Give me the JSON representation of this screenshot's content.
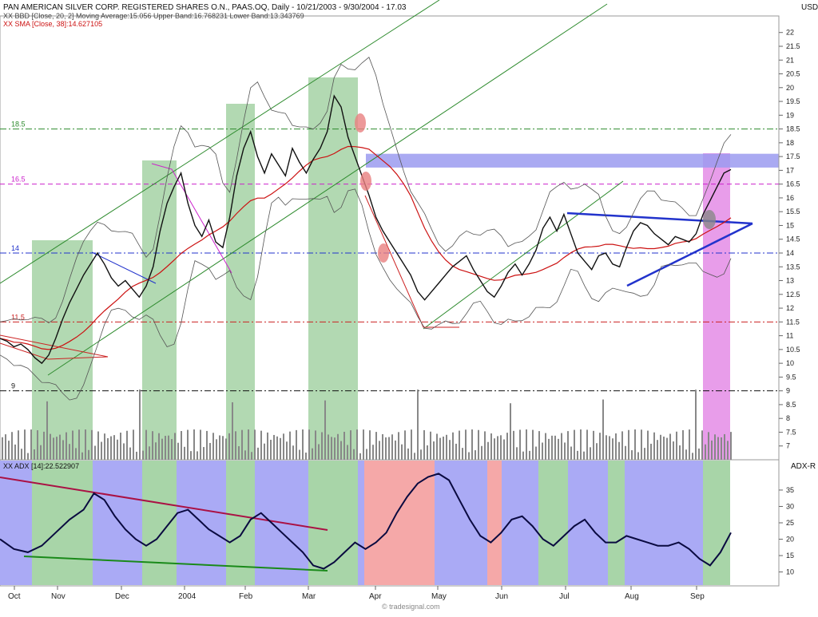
{
  "header": {
    "title_line": "PAN AMERICAN SILVER CORP. REGISTERED SHARES O.N., PAAS.OQ, Daily - 10/21/2003 - 9/30/2004 - 17.03",
    "bb_line": "XX BBD [Close, 20, 2] Moving Average:15.056 Upper Band:16.768231 Lower Band:13.343769",
    "sma_line": "XX SMA [Close, 38]:14.627105",
    "currency": "USD",
    "adx_line": "XX ADX [14]:22.522907",
    "adx_right_label": "ADX-R",
    "watermark": "© tradesignal.com"
  },
  "chart_data": {
    "type": "candlestick",
    "symbol": "PAAS.OQ",
    "period": "Daily - 10/21/2003 - 9/30/2004",
    "last_close": 17.03,
    "price_axis": {
      "ticks": [
        7,
        7.5,
        8,
        8.5,
        9,
        9.5,
        10,
        10.5,
        11,
        11.5,
        12,
        12.5,
        13,
        13.5,
        14,
        14.5,
        15,
        15.5,
        16,
        16.5,
        17,
        17.5,
        18,
        18.5,
        19,
        19.5,
        20,
        20.5,
        21,
        21.5,
        22
      ],
      "ylim": [
        6.5,
        22.6
      ],
      "unit": "USD"
    },
    "x_labels": [
      "Oct",
      "Nov",
      "Dec",
      "2004",
      "Feb",
      "Mar",
      "Apr",
      "May",
      "Jun",
      "Jul",
      "Aug",
      "Sep"
    ],
    "reference_levels": [
      {
        "label": "18.5",
        "value": 18.5,
        "color": "#2e8b2e",
        "style": "dashdot"
      },
      {
        "label": "16.5",
        "value": 16.5,
        "color": "#cc22cc",
        "style": "dash"
      },
      {
        "label": "14",
        "value": 14,
        "color": "#2233cc",
        "style": "dashdot"
      },
      {
        "label": "11.5",
        "value": 11.5,
        "color": "#cc2222",
        "style": "dashdot"
      },
      {
        "label": "9",
        "value": 9,
        "color": "#111111",
        "style": "dashdot"
      }
    ],
    "close_series": [
      [
        0,
        10.9
      ],
      [
        2,
        10.8
      ],
      [
        4,
        10.6
      ],
      [
        6,
        10.7
      ],
      [
        8,
        10.5
      ],
      [
        10,
        10.2
      ],
      [
        12,
        10.0
      ],
      [
        14,
        10.3
      ],
      [
        16,
        10.9
      ],
      [
        18,
        11.6
      ],
      [
        20,
        12.2
      ],
      [
        22,
        12.7
      ],
      [
        24,
        13.2
      ],
      [
        26,
        13.6
      ],
      [
        28,
        14.0
      ],
      [
        30,
        13.6
      ],
      [
        32,
        13.1
      ],
      [
        34,
        12.8
      ],
      [
        36,
        13.0
      ],
      [
        38,
        12.7
      ],
      [
        40,
        12.4
      ],
      [
        42,
        12.8
      ],
      [
        44,
        13.5
      ],
      [
        46,
        14.8
      ],
      [
        48,
        15.8
      ],
      [
        50,
        16.4
      ],
      [
        52,
        16.9
      ],
      [
        54,
        15.8
      ],
      [
        56,
        15.0
      ],
      [
        58,
        14.6
      ],
      [
        60,
        15.2
      ],
      [
        62,
        14.4
      ],
      [
        64,
        14.2
      ],
      [
        66,
        15.3
      ],
      [
        68,
        16.8
      ],
      [
        70,
        17.8
      ],
      [
        72,
        18.4
      ],
      [
        74,
        17.5
      ],
      [
        76,
        16.9
      ],
      [
        78,
        17.6
      ],
      [
        80,
        17.2
      ],
      [
        82,
        16.8
      ],
      [
        84,
        17.8
      ],
      [
        86,
        17.3
      ],
      [
        88,
        16.9
      ],
      [
        90,
        17.4
      ],
      [
        92,
        17.8
      ],
      [
        94,
        18.4
      ],
      [
        96,
        19.7
      ],
      [
        98,
        19.3
      ],
      [
        100,
        18.2
      ],
      [
        102,
        17.5
      ],
      [
        104,
        16.8
      ],
      [
        106,
        16.1
      ],
      [
        108,
        15.3
      ],
      [
        110,
        14.8
      ],
      [
        112,
        14.4
      ],
      [
        114,
        14.0
      ],
      [
        116,
        13.6
      ],
      [
        118,
        13.2
      ],
      [
        120,
        12.6
      ],
      [
        122,
        12.3
      ],
      [
        124,
        12.6
      ],
      [
        126,
        12.9
      ],
      [
        128,
        13.2
      ],
      [
        130,
        13.5
      ],
      [
        132,
        13.7
      ],
      [
        134,
        13.9
      ],
      [
        136,
        13.4
      ],
      [
        138,
        13.0
      ],
      [
        140,
        12.6
      ],
      [
        142,
        12.4
      ],
      [
        144,
        12.8
      ],
      [
        146,
        13.3
      ],
      [
        148,
        13.6
      ],
      [
        150,
        13.2
      ],
      [
        152,
        13.6
      ],
      [
        154,
        14.1
      ],
      [
        156,
        14.9
      ],
      [
        158,
        15.3
      ],
      [
        160,
        14.8
      ],
      [
        162,
        15.4
      ],
      [
        164,
        14.7
      ],
      [
        166,
        14.0
      ],
      [
        168,
        13.7
      ],
      [
        170,
        13.4
      ],
      [
        172,
        13.9
      ],
      [
        174,
        14.0
      ],
      [
        176,
        13.6
      ],
      [
        178,
        13.5
      ],
      [
        180,
        14.2
      ],
      [
        182,
        14.8
      ],
      [
        184,
        15.1
      ],
      [
        186,
        15.0
      ],
      [
        188,
        14.7
      ],
      [
        190,
        14.5
      ],
      [
        192,
        14.3
      ],
      [
        194,
        14.6
      ],
      [
        196,
        14.5
      ],
      [
        198,
        14.4
      ],
      [
        200,
        14.7
      ],
      [
        202,
        15.4
      ],
      [
        204,
        15.9
      ],
      [
        206,
        16.4
      ],
      [
        208,
        16.9
      ],
      [
        210,
        17.03
      ]
    ],
    "highlight_band": {
      "from": 17.1,
      "to": 17.6
    },
    "adx": {
      "label": "ADX [14]",
      "last": 22.522907,
      "ticks": [
        10,
        15,
        20,
        25,
        30,
        35
      ],
      "ylim": [
        6,
        44
      ],
      "series": [
        [
          0,
          20
        ],
        [
          4,
          17
        ],
        [
          8,
          16
        ],
        [
          12,
          18
        ],
        [
          16,
          22
        ],
        [
          20,
          26
        ],
        [
          24,
          29
        ],
        [
          27,
          34
        ],
        [
          30,
          32
        ],
        [
          33,
          27
        ],
        [
          36,
          23
        ],
        [
          39,
          20
        ],
        [
          42,
          18
        ],
        [
          45,
          20
        ],
        [
          48,
          24
        ],
        [
          51,
          28
        ],
        [
          54,
          29
        ],
        [
          57,
          26
        ],
        [
          60,
          23
        ],
        [
          63,
          21
        ],
        [
          66,
          19
        ],
        [
          69,
          21
        ],
        [
          72,
          26
        ],
        [
          75,
          28
        ],
        [
          78,
          25
        ],
        [
          81,
          22
        ],
        [
          84,
          19
        ],
        [
          87,
          16
        ],
        [
          90,
          12
        ],
        [
          93,
          11
        ],
        [
          96,
          13
        ],
        [
          99,
          16
        ],
        [
          102,
          19
        ],
        [
          105,
          17
        ],
        [
          108,
          19
        ],
        [
          111,
          22
        ],
        [
          114,
          28
        ],
        [
          117,
          33
        ],
        [
          120,
          37
        ],
        [
          123,
          39
        ],
        [
          126,
          40
        ],
        [
          129,
          38
        ],
        [
          132,
          32
        ],
        [
          135,
          26
        ],
        [
          138,
          21
        ],
        [
          141,
          19
        ],
        [
          144,
          22
        ],
        [
          147,
          26
        ],
        [
          150,
          27
        ],
        [
          153,
          24
        ],
        [
          156,
          20
        ],
        [
          159,
          18
        ],
        [
          162,
          21
        ],
        [
          165,
          24
        ],
        [
          168,
          26
        ],
        [
          171,
          22
        ],
        [
          174,
          19
        ],
        [
          177,
          19
        ],
        [
          180,
          21
        ],
        [
          183,
          20
        ],
        [
          186,
          19
        ],
        [
          189,
          18
        ],
        [
          192,
          18
        ],
        [
          195,
          19
        ],
        [
          198,
          17
        ],
        [
          201,
          14
        ],
        [
          204,
          12
        ],
        [
          207,
          16
        ],
        [
          210,
          22
        ]
      ]
    }
  }
}
